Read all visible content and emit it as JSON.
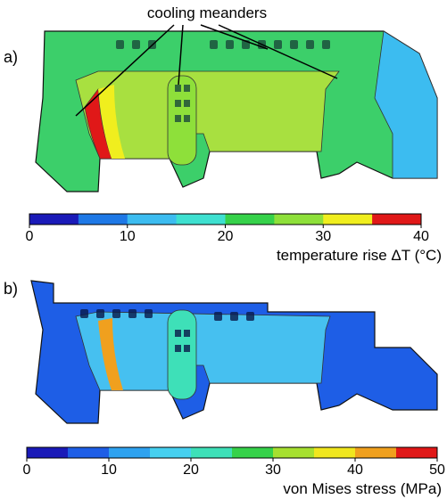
{
  "panels": [
    {
      "label": "a)",
      "annotation": "cooling meanders",
      "colorbar": {
        "lim": [
          0,
          40
        ],
        "ticks": [
          0,
          10,
          20,
          30,
          40
        ],
        "colors": [
          "#1a1ab8",
          "#1e78e6",
          "#3cbcf0",
          "#3ee0d0",
          "#36d24a",
          "#8ee03a",
          "#f0ee1e",
          "#e01818"
        ],
        "label": "temperature rise ΔT (°C)"
      }
    },
    {
      "label": "b)",
      "colorbar": {
        "lim": [
          0,
          50
        ],
        "ticks": [
          0,
          10,
          20,
          30,
          40,
          50
        ],
        "colors": [
          "#1a1ab8",
          "#1e5ee6",
          "#2ea2f0",
          "#46d0f0",
          "#3ee0b8",
          "#36d24a",
          "#a6e030",
          "#f0e61e",
          "#f0a01e",
          "#e01818"
        ],
        "label": "von Mises stress (MPa)"
      }
    }
  ]
}
